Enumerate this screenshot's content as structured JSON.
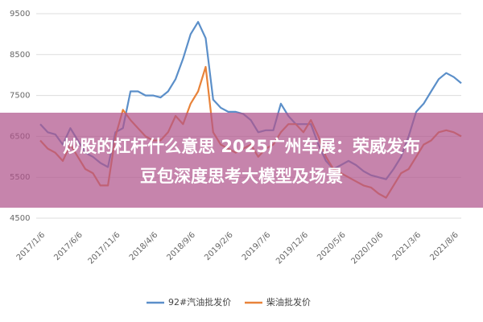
{
  "chart_data": {
    "type": "line",
    "categories": [
      "2017/1/6",
      null,
      null,
      null,
      null,
      "2017/6/6",
      null,
      null,
      null,
      null,
      "2017/11/6",
      null,
      null,
      null,
      null,
      "2018/4/6",
      null,
      null,
      null,
      null,
      "2018/9/6",
      null,
      null,
      null,
      null,
      "2019/2/6",
      null,
      null,
      null,
      null,
      "2019/7/6",
      null,
      null,
      null,
      null,
      "2019/12/6",
      null,
      null,
      null,
      null,
      "2020/5/6",
      null,
      null,
      null,
      null,
      "2020/10/6",
      null,
      null,
      null,
      null,
      "2021/3/6",
      null,
      null,
      null,
      null,
      "2021/8/6",
      null
    ],
    "series": [
      {
        "name": "92#汽油批发价",
        "color": "#5b8fc9",
        "values": [
          6800,
          6600,
          6550,
          6300,
          6700,
          6400,
          6100,
          6000,
          5850,
          5750,
          6600,
          6700,
          7600,
          7600,
          7500,
          7500,
          7450,
          7600,
          7900,
          8400,
          9000,
          9300,
          8900,
          7400,
          7200,
          7100,
          7100,
          7050,
          6900,
          6600,
          6650,
          6650,
          7300,
          7000,
          6800,
          6800,
          6800,
          6300,
          5900,
          5700,
          5800,
          5900,
          5800,
          5650,
          5550,
          5500,
          5450,
          5700,
          6000,
          6500,
          7100,
          7300,
          7600,
          7900,
          8050,
          7950,
          7800
        ]
      },
      {
        "name": "柴油批发价",
        "color": "#e8833a",
        "values": [
          6400,
          6200,
          6100,
          5900,
          6300,
          6000,
          5700,
          5600,
          5300,
          5300,
          6500,
          7150,
          6900,
          6700,
          6500,
          6400,
          6400,
          6600,
          7000,
          6800,
          7300,
          7600,
          8200,
          6600,
          6300,
          6200,
          6100,
          6200,
          6300,
          6000,
          6200,
          6300,
          6600,
          6800,
          6800,
          6600,
          6900,
          6500,
          6000,
          5700,
          5600,
          5500,
          5400,
          5300,
          5250,
          5100,
          5000,
          5300,
          5600,
          5700,
          6000,
          6300,
          6400,
          6600,
          6650,
          6600,
          6500
        ]
      }
    ],
    "ylim": [
      4500,
      9500
    ],
    "yticks": [
      4500,
      5500,
      6500,
      7500,
      8500,
      9500
    ],
    "grid": true
  },
  "banner": {
    "lines": [
      "炒股的杠杆什么意思 2025广州车展：荣威发布",
      "豆包深度思考大模型及场景"
    ]
  }
}
